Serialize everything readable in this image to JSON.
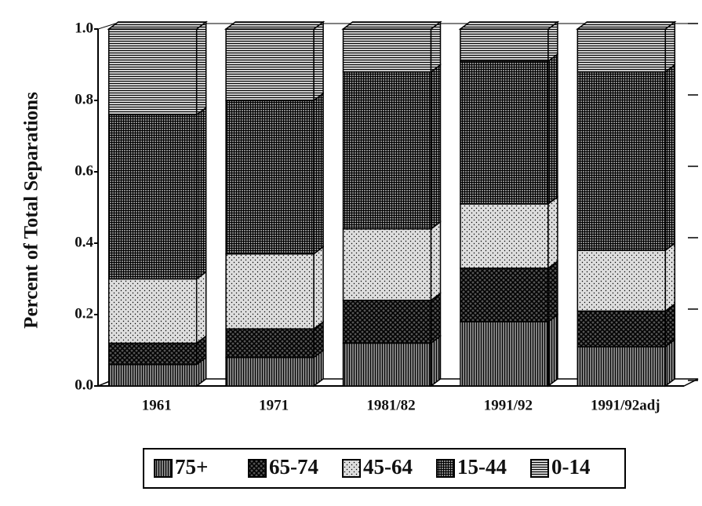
{
  "chart_data": {
    "type": "bar",
    "stacked": true,
    "three_d": true,
    "y_label": "Percent of Total Separations",
    "categories": [
      "1961",
      "1971",
      "1981/82",
      "1991/92",
      "1991/92adj"
    ],
    "series": [
      {
        "name": "75+",
        "color": "#ffffff",
        "values": [
          0.06,
          0.08,
          0.12,
          0.18,
          0.11
        ]
      },
      {
        "name": "65-74",
        "color": "#555555",
        "values": [
          0.06,
          0.08,
          0.12,
          0.15,
          0.1
        ]
      },
      {
        "name": "45-64",
        "color": "#dddddd",
        "values": [
          0.18,
          0.21,
          0.2,
          0.18,
          0.17
        ]
      },
      {
        "name": "15-44",
        "color": "#888888",
        "values": [
          0.46,
          0.43,
          0.44,
          0.4,
          0.5
        ]
      },
      {
        "name": "0-14",
        "color": "#ffffff",
        "values": [
          0.24,
          0.2,
          0.12,
          0.09,
          0.12
        ]
      }
    ],
    "ylim": [
      0,
      1
    ],
    "yticks": [
      {
        "value": 0,
        "label": "0.0"
      },
      0.2,
      0.4,
      0.6,
      0.8,
      {
        "value": 1,
        "label": "1.0"
      }
    ],
    "grid": false,
    "legend": "bottom"
  }
}
